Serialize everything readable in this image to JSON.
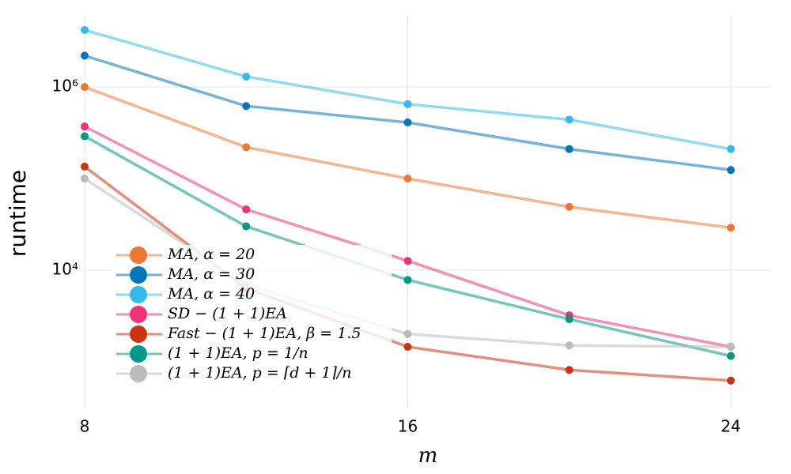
{
  "chart_data": {
    "type": "line",
    "xlabel": "m",
    "ylabel": "runtime",
    "x": [
      8,
      12,
      16,
      20,
      24
    ],
    "xlim": [
      8,
      25
    ],
    "xticks": [
      8,
      16,
      24
    ],
    "ylim": [
      320,
      6000000
    ],
    "yticks": [
      {
        "value": 10000,
        "label": "10⁴"
      },
      {
        "value": 1000000,
        "label": "10⁶"
      }
    ],
    "log_y": true,
    "grid": true,
    "legend": "lower left",
    "series": [
      {
        "name": "MA, α = 20",
        "color": "#EE7733",
        "values": [
          1000000,
          220000,
          100000,
          49000,
          29000
        ]
      },
      {
        "name": "MA, α = 30",
        "color": "#0077BB",
        "values": [
          2200000,
          620000,
          410000,
          210000,
          124000
        ]
      },
      {
        "name": "MA, α = 40",
        "color": "#33BBEE",
        "values": [
          4200000,
          1300000,
          650000,
          440000,
          210000
        ]
      },
      {
        "name": "SD − (1 + 1)EA",
        "color": "#EE3377",
        "values": [
          370000,
          46000,
          12600,
          3200,
          1450
        ]
      },
      {
        "name": "Fast − (1 + 1)EA, β = 1.5",
        "color": "#CC3311",
        "values": [
          135000,
          6300,
          1450,
          810,
          620
        ]
      },
      {
        "name": "(1 + 1)EA, p = 1/n",
        "color": "#009988",
        "values": [
          290000,
          30000,
          7800,
          2900,
          1150
        ]
      },
      {
        "name": "(1 + 1)EA, p = ⌈d + 1⌉/n",
        "color": "#BBBBBB",
        "values": [
          100000,
          6900,
          2000,
          1500,
          1450
        ]
      }
    ]
  }
}
